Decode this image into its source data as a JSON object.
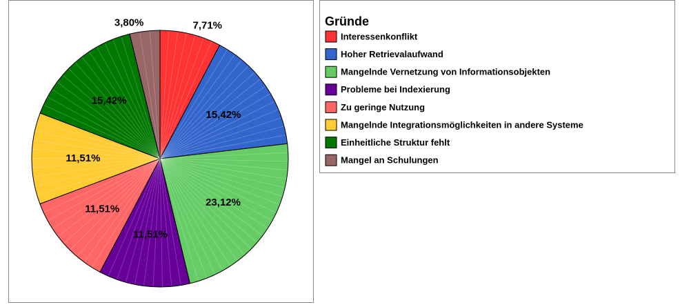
{
  "chart_data": {
    "type": "pie",
    "legend_title": "Gründe",
    "categories": [
      "Interessenkonflikt",
      "Hoher Retrievalaufwand",
      "Mangelnde Vernetzung von Informationsobjekten",
      "Probleme bei Indexierung",
      "Zu geringe Nutzung",
      "Mangelnde Integrationsmöglichkeiten in andere Systeme",
      "Einheitliche Struktur fehlt",
      "Mangel an Schulungen"
    ],
    "values": [
      7.71,
      15.42,
      23.12,
      11.51,
      11.51,
      11.51,
      15.42,
      3.8
    ],
    "value_labels": [
      "7,71%",
      "15,42%",
      "23,12%",
      "11,51%",
      "11,51%",
      "11,51%",
      "15,42%",
      "3,80%"
    ],
    "colors": [
      "#ff3333",
      "#3366cc",
      "#66cc66",
      "#660099",
      "#ff6666",
      "#ffcc33",
      "#007700",
      "#996666"
    ]
  }
}
